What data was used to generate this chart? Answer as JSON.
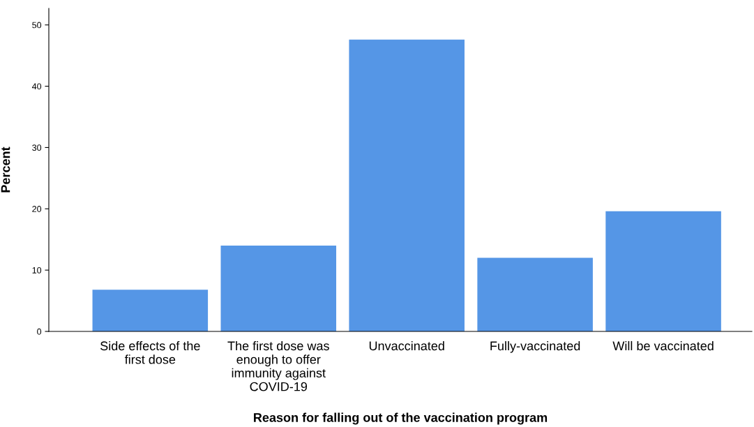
{
  "chart_data": {
    "type": "bar",
    "xlabel": "Reason for falling out of the vaccination program",
    "ylabel": "Percent",
    "categories": [
      "Side effects of the\nfirst dose",
      "The first dose was\nenough to offer\nimmunity against\nCOVID-19",
      "Unvaccinated",
      "Fully-vaccinated",
      "Will be vaccinated"
    ],
    "values": [
      6.8,
      14.0,
      47.6,
      12.0,
      19.6
    ],
    "color": "#5596e6",
    "ylim": [
      0,
      52.7
    ],
    "yticks": [
      0,
      10,
      20,
      30,
      40,
      50
    ],
    "grid": false
  }
}
